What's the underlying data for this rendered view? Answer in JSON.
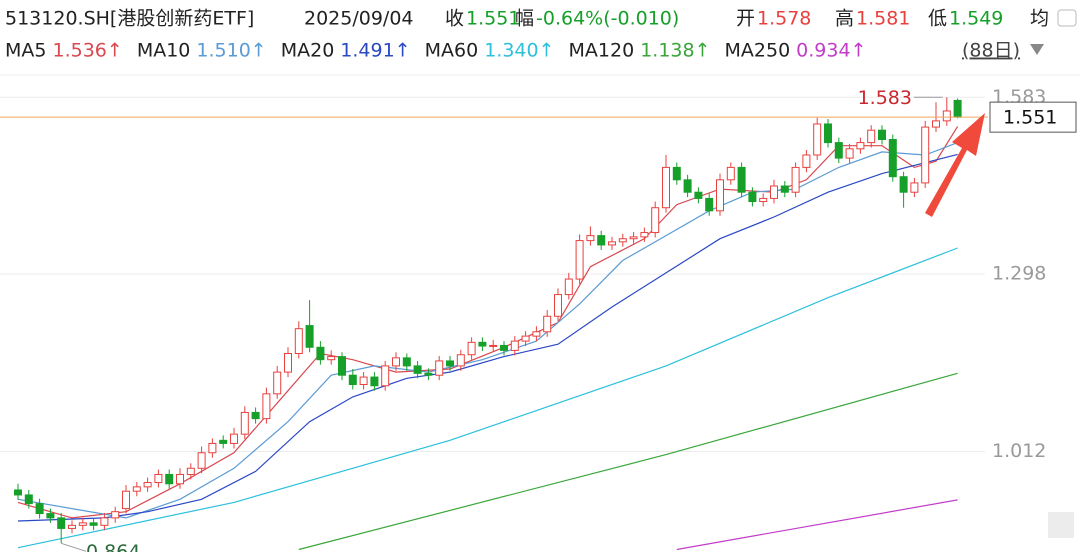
{
  "header": {
    "symbol": "513120.SH[港股创新药ETF]",
    "date": "2025/09/04",
    "close_label": "收",
    "change_label": "幅",
    "change": "-0.64%(-0.010)",
    "open_label": "开",
    "high_label": "高",
    "low_label": "低",
    "avg_label": "均",
    "period": "(88日)"
  },
  "chart_data": {
    "type": "candlestick",
    "open": [
      0.95,
      0.942,
      0.928,
      0.912,
      0.905,
      0.888,
      0.893,
      0.897,
      0.893,
      0.905,
      0.92,
      0.948,
      0.955,
      0.962,
      0.975,
      0.96,
      0.975,
      0.985,
      1.01,
      1.03,
      1.025,
      1.04,
      1.075,
      1.065,
      1.105,
      1.14,
      1.17,
      1.215,
      1.18,
      1.16,
      1.165,
      1.135,
      1.12,
      1.132,
      1.118,
      1.15,
      1.163,
      1.15,
      1.138,
      1.135,
      1.158,
      1.15,
      1.168,
      1.188,
      1.182,
      1.183,
      1.175,
      1.19,
      1.198,
      1.205,
      1.23,
      1.265,
      1.29,
      1.352,
      1.36,
      1.345,
      1.35,
      1.355,
      1.358,
      1.365,
      1.405,
      1.47,
      1.45,
      1.43,
      1.42,
      1.4,
      1.45,
      1.47,
      1.43,
      1.415,
      1.42,
      1.44,
      1.43,
      1.47,
      1.49,
      1.54,
      1.51,
      1.485,
      1.5,
      1.51,
      1.53,
      1.515,
      1.455,
      1.43,
      1.445,
      1.535,
      1.545,
      1.578
    ],
    "high": [
      0.96,
      0.95,
      0.936,
      0.92,
      0.913,
      0.901,
      0.905,
      0.905,
      0.913,
      0.923,
      0.958,
      0.963,
      0.97,
      0.983,
      0.983,
      0.985,
      0.993,
      1.02,
      1.033,
      1.038,
      1.05,
      1.085,
      1.083,
      1.115,
      1.15,
      1.18,
      1.222,
      1.256,
      1.19,
      1.175,
      1.172,
      1.145,
      1.14,
      1.14,
      1.158,
      1.172,
      1.17,
      1.158,
      1.146,
      1.166,
      1.166,
      1.176,
      1.196,
      1.196,
      1.192,
      1.19,
      1.198,
      1.206,
      1.214,
      1.24,
      1.275,
      1.3,
      1.362,
      1.375,
      1.368,
      1.358,
      1.363,
      1.366,
      1.373,
      1.415,
      1.49,
      1.478,
      1.458,
      1.438,
      1.428,
      1.46,
      1.478,
      1.478,
      1.438,
      1.428,
      1.45,
      1.448,
      1.478,
      1.498,
      1.55,
      1.548,
      1.518,
      1.508,
      1.518,
      1.538,
      1.538,
      1.523,
      1.463,
      1.453,
      1.545,
      1.575,
      1.583,
      1.581
    ],
    "low": [
      0.934,
      0.92,
      0.904,
      0.897,
      0.864,
      0.88,
      0.885,
      0.885,
      0.885,
      0.897,
      0.912,
      0.94,
      0.947,
      0.954,
      0.952,
      0.952,
      0.967,
      0.977,
      1.002,
      1.017,
      1.017,
      1.032,
      1.057,
      1.057,
      1.097,
      1.132,
      1.162,
      1.172,
      1.152,
      1.152,
      1.127,
      1.112,
      1.112,
      1.11,
      1.11,
      1.142,
      1.142,
      1.13,
      1.127,
      1.127,
      1.142,
      1.142,
      1.16,
      1.174,
      1.174,
      1.167,
      1.167,
      1.182,
      1.19,
      1.197,
      1.222,
      1.257,
      1.282,
      1.344,
      1.337,
      1.337,
      1.342,
      1.347,
      1.35,
      1.357,
      1.397,
      1.442,
      1.422,
      1.412,
      1.392,
      1.392,
      1.442,
      1.422,
      1.407,
      1.407,
      1.412,
      1.422,
      1.422,
      1.462,
      1.482,
      1.502,
      1.477,
      1.477,
      1.492,
      1.502,
      1.507,
      1.447,
      1.405,
      1.422,
      1.437,
      1.527,
      1.537,
      1.549
    ],
    "close": [
      0.942,
      0.928,
      0.912,
      0.905,
      0.888,
      0.893,
      0.897,
      0.893,
      0.905,
      0.915,
      0.948,
      0.955,
      0.962,
      0.975,
      0.96,
      0.975,
      0.985,
      1.01,
      1.025,
      1.025,
      1.04,
      1.075,
      1.065,
      1.105,
      1.14,
      1.17,
      1.21,
      1.18,
      1.16,
      1.165,
      1.135,
      1.12,
      1.132,
      1.118,
      1.15,
      1.163,
      1.15,
      1.138,
      1.135,
      1.158,
      1.15,
      1.168,
      1.188,
      1.182,
      1.183,
      1.175,
      1.19,
      1.198,
      1.205,
      1.23,
      1.265,
      1.29,
      1.352,
      1.36,
      1.345,
      1.35,
      1.355,
      1.358,
      1.365,
      1.405,
      1.47,
      1.45,
      1.43,
      1.42,
      1.4,
      1.45,
      1.47,
      1.43,
      1.415,
      1.42,
      1.44,
      1.43,
      1.47,
      1.49,
      1.54,
      1.51,
      1.485,
      1.5,
      1.51,
      1.53,
      1.515,
      1.455,
      1.43,
      1.445,
      1.535,
      1.545,
      1.561,
      1.551
    ],
    "up_color": "#e8413e",
    "down_color": "#16a02a",
    "last_price_color": "#f2a860",
    "ylim": [
      0.85,
      1.598
    ],
    "yticks": [
      1.012,
      1.298,
      1.583
    ],
    "grid": true,
    "series": [
      {
        "name": "MA5",
        "color": "#d9474f",
        "value_label": "1.536↑",
        "x": [
          0,
          5,
          10,
          15,
          20,
          25,
          28,
          31,
          35,
          40,
          45,
          50,
          53,
          58,
          61,
          65,
          70,
          73,
          76,
          80,
          83,
          85,
          87
        ],
        "values": [
          0.93,
          0.905,
          0.915,
          0.96,
          1.01,
          1.11,
          1.17,
          1.16,
          1.14,
          1.145,
          1.18,
          1.22,
          1.31,
          1.355,
          1.41,
          1.435,
          1.43,
          1.45,
          1.505,
          1.505,
          1.47,
          1.48,
          1.536
        ]
      },
      {
        "name": "MA10",
        "color": "#5b9bd5",
        "value_label": "1.510↑",
        "x": [
          0,
          5,
          10,
          15,
          20,
          25,
          29,
          33,
          38,
          43,
          48,
          52,
          56,
          60,
          64,
          68,
          72,
          76,
          80,
          84,
          87
        ],
        "values": [
          0.935,
          0.92,
          0.905,
          0.935,
          0.985,
          1.06,
          1.135,
          1.15,
          1.14,
          1.16,
          1.19,
          1.25,
          1.32,
          1.36,
          1.4,
          1.43,
          1.435,
          1.47,
          1.495,
          1.49,
          1.51
        ]
      },
      {
        "name": "MA20",
        "color": "#2a48c4",
        "value_label": "1.491↑",
        "x": [
          0,
          8,
          12,
          17,
          22,
          27,
          31,
          36,
          40,
          45,
          50,
          55,
          60,
          65,
          70,
          75,
          80,
          87
        ],
        "values": [
          0.9,
          0.905,
          0.915,
          0.935,
          0.98,
          1.06,
          1.1,
          1.13,
          1.14,
          1.165,
          1.185,
          1.245,
          1.3,
          1.355,
          1.39,
          1.43,
          1.46,
          1.491
        ]
      },
      {
        "name": "MA60",
        "color": "#2cc0dc",
        "value_label": "1.340↑",
        "x": [
          0,
          20,
          40,
          60,
          75,
          87
        ],
        "values": [
          0.857,
          0.93,
          1.03,
          1.15,
          1.26,
          1.34
        ]
      },
      {
        "name": "MA120",
        "color": "#3aa63a",
        "value_label": "1.138↑",
        "x": [
          26,
          60,
          87
        ],
        "values": [
          0.854,
          1.007,
          1.138
        ]
      },
      {
        "name": "MA250",
        "color": "#c23cc8",
        "value_label": "0.934↑",
        "x": [
          61,
          87
        ],
        "values": [
          0.854,
          0.934
        ]
      }
    ]
  }
}
